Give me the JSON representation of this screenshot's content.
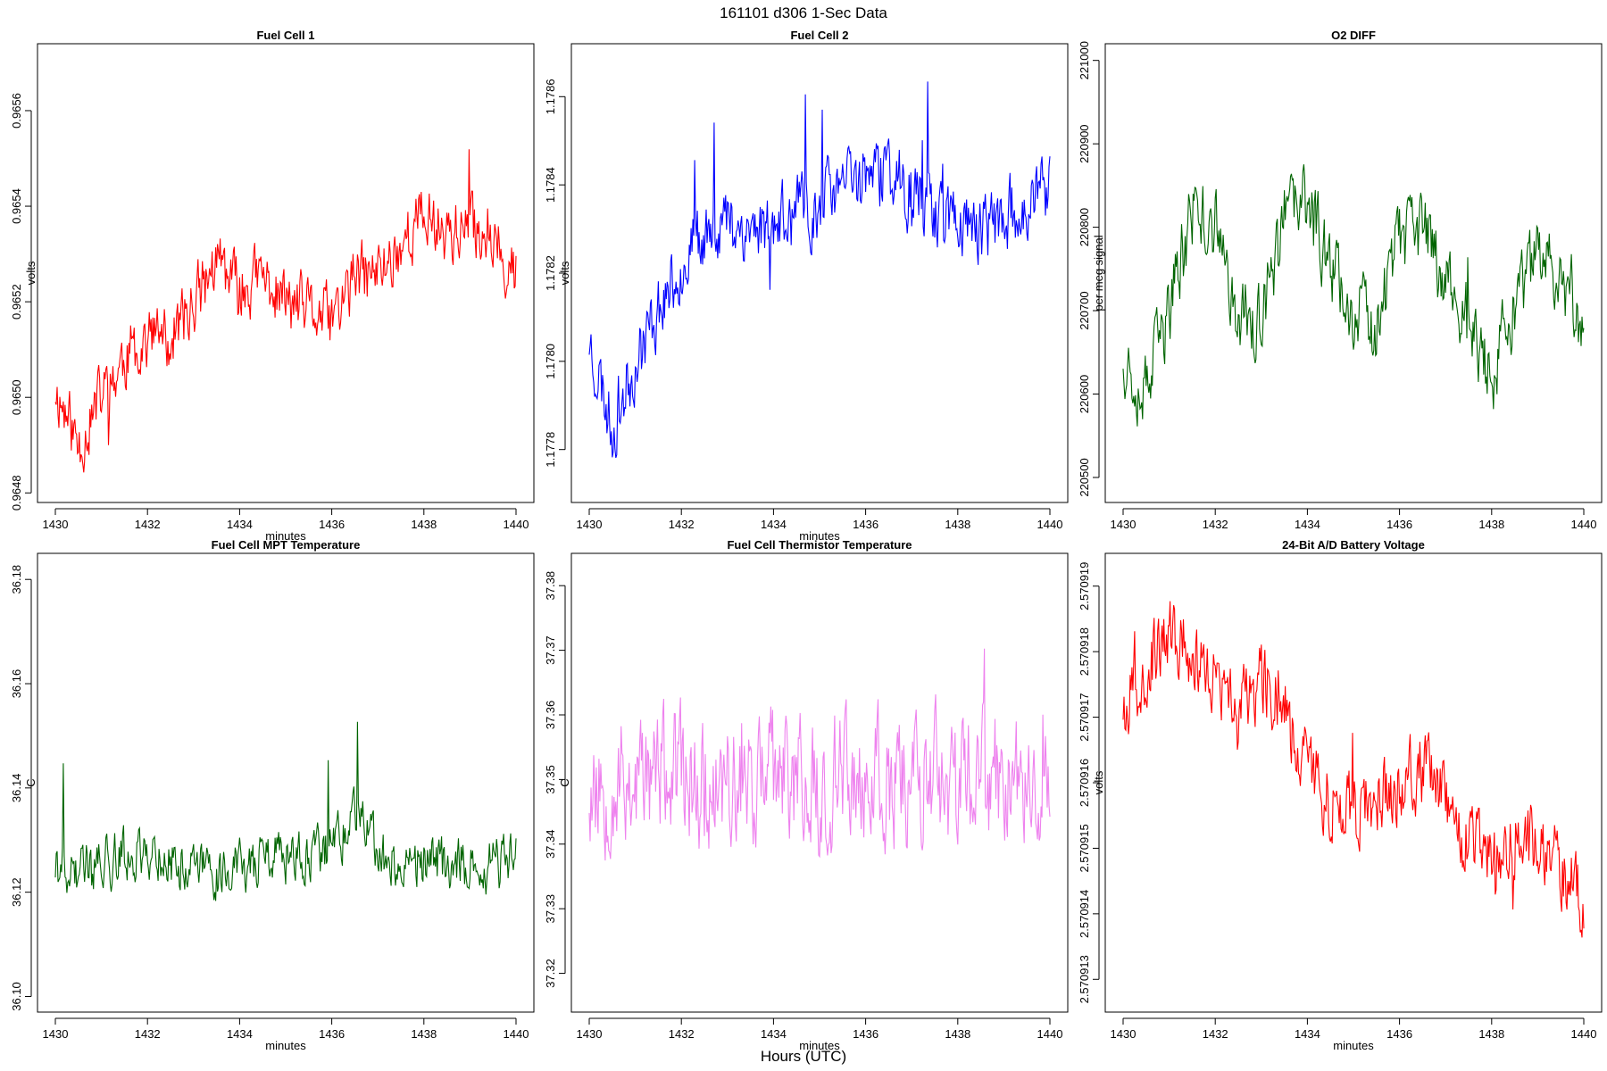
{
  "figure": {
    "title": "161101   d306   1-Sec Data",
    "footer": "Hours (UTC)"
  },
  "chart_data": [
    {
      "type": "line",
      "title": "Fuel Cell 1",
      "xlabel": "minutes",
      "ylabel": "volts",
      "color": "#ff0000",
      "xlim": [
        1430,
        1440
      ],
      "ylim": [
        0.96478,
        0.96574
      ],
      "xticks": [
        1430,
        1432,
        1434,
        1436,
        1438,
        1440
      ],
      "xtick_labels": [
        "1430",
        "1432",
        "1434",
        "1436",
        "1438",
        "1440"
      ],
      "yticks": [
        0.9648,
        0.965,
        0.9652,
        0.9654,
        0.9656
      ],
      "ytick_labels": [
        "0.9648",
        "0.9650",
        "0.9652",
        "0.9654",
        "0.9656"
      ],
      "series": [
        {
          "name": "Fuel Cell 1",
          "x_start": 1430,
          "x_step": 0.5,
          "values": [
            0.96502,
            0.9649,
            0.965,
            0.96508,
            0.96513,
            0.96512,
            0.9652,
            0.96528,
            0.96522,
            0.96525,
            0.9652,
            0.96518,
            0.96516,
            0.96525,
            0.96526,
            0.96532,
            0.96538,
            0.96535,
            0.96535,
            0.96535,
            0.96525,
            0.9653
          ]
        }
      ]
    },
    {
      "type": "line",
      "title": "Fuel Cell 2",
      "xlabel": "minutes",
      "ylabel": "volts",
      "color": "#0000ff",
      "xlim": [
        1430,
        1440
      ],
      "ylim": [
        1.17768,
        1.17872
      ],
      "xticks": [
        1430,
        1432,
        1434,
        1436,
        1438,
        1440
      ],
      "xtick_labels": [
        "1430",
        "1432",
        "1434",
        "1436",
        "1438",
        "1440"
      ],
      "yticks": [
        1.1778,
        1.178,
        1.1782,
        1.1784,
        1.1786
      ],
      "ytick_labels": [
        "1.1778",
        "1.1780",
        "1.1782",
        "1.1784",
        "1.1786"
      ],
      "series": [
        {
          "name": "Fuel Cell 2",
          "x_start": 1430,
          "x_step": 0.5,
          "values": [
            1.17805,
            1.17785,
            1.178,
            1.17812,
            1.17822,
            1.1783,
            1.17832,
            1.1783,
            1.17831,
            1.17833,
            1.17835,
            1.1784,
            1.17842,
            1.17843,
            1.17838,
            1.17835,
            1.17832,
            1.1783,
            1.17832,
            1.17836,
            1.17838,
            1.17838
          ]
        }
      ]
    },
    {
      "type": "line",
      "title": "O2 DIFF",
      "xlabel": "",
      "ylabel": "per meg signal",
      "color": "#006400",
      "xlim": [
        1430,
        1440
      ],
      "ylim": [
        220470,
        221020
      ],
      "xticks": [
        1430,
        1432,
        1434,
        1436,
        1438,
        1440
      ],
      "xtick_labels": [
        "1430",
        "1432",
        "1434",
        "1436",
        "1438",
        "1440"
      ],
      "yticks": [
        220500,
        220600,
        220700,
        220800,
        220900,
        221000
      ],
      "ytick_labels": [
        "220500",
        "220600",
        "220700",
        "220800",
        "220900",
        "221000"
      ],
      "series": [
        {
          "name": "O2 DIFF",
          "x_start": 1430,
          "x_step": 0.5,
          "values": [
            220650,
            220600,
            220700,
            220820,
            220800,
            220700,
            220680,
            220810,
            220830,
            220760,
            220700,
            220680,
            220780,
            220800,
            220740,
            220680,
            220620,
            220700,
            220760,
            220750,
            220680,
            220650
          ]
        }
      ]
    },
    {
      "type": "line",
      "title": "Fuel Cell MPT Temperature",
      "xlabel": "minutes",
      "ylabel": "C",
      "color": "#006400",
      "xlim": [
        1430,
        1440
      ],
      "ylim": [
        36.097,
        36.185
      ],
      "xticks": [
        1430,
        1432,
        1434,
        1436,
        1438,
        1440
      ],
      "xtick_labels": [
        "1430",
        "1432",
        "1434",
        "1436",
        "1438",
        "1440"
      ],
      "yticks": [
        36.1,
        36.12,
        36.14,
        36.16,
        36.18
      ],
      "ytick_labels": [
        "36.10",
        "36.12",
        "36.14",
        "36.16",
        "36.18"
      ],
      "series": [
        {
          "name": "Fuel Cell MPT Temperature",
          "x_start": 1430,
          "x_step": 0.5,
          "values": [
            36.125,
            36.124,
            36.126,
            36.127,
            36.128,
            36.126,
            36.125,
            36.124,
            36.125,
            36.126,
            36.127,
            36.126,
            36.128,
            36.135,
            36.127,
            36.126,
            36.126,
            36.125,
            36.126,
            36.125,
            36.127,
            36.126
          ]
        }
      ]
    },
    {
      "type": "line",
      "title": "Fuel Cell Thermistor Temperature",
      "xlabel": "minutes",
      "ylabel": "C",
      "color": "#ee82ee",
      "xlim": [
        1430,
        1440
      ],
      "ylim": [
        37.314,
        37.385
      ],
      "xticks": [
        1430,
        1432,
        1434,
        1436,
        1438,
        1440
      ],
      "xtick_labels": [
        "1430",
        "1432",
        "1434",
        "1436",
        "1438",
        "1440"
      ],
      "yticks": [
        37.32,
        37.33,
        37.34,
        37.35,
        37.36,
        37.37,
        37.38
      ],
      "ytick_labels": [
        "37.32",
        "37.33",
        "37.34",
        "37.35",
        "37.36",
        "37.37",
        "37.38"
      ],
      "series": [
        {
          "name": "Fuel Cell Thermistor Temperature",
          "x_start": 1430,
          "x_step": 0.5,
          "values": [
            37.349,
            37.35,
            37.35,
            37.351,
            37.35,
            37.35,
            37.349,
            37.35,
            37.35,
            37.35,
            37.349,
            37.35,
            37.35,
            37.35,
            37.351,
            37.35,
            37.349,
            37.35,
            37.35,
            37.35,
            37.35,
            37.349
          ]
        }
      ]
    },
    {
      "type": "line",
      "title": "24-Bit A/D Battery Voltage",
      "xlabel": "minutes",
      "ylabel": "volts",
      "color": "#ff0000",
      "xlim": [
        1430,
        1440
      ],
      "ylim": [
        2.5709125,
        2.5709195
      ],
      "xticks": [
        1430,
        1432,
        1434,
        1436,
        1438,
        1440
      ],
      "xtick_labels": [
        "1430",
        "1432",
        "1434",
        "1436",
        "1438",
        "1440"
      ],
      "yticks": [
        2.570913,
        2.570914,
        2.570915,
        2.570916,
        2.570917,
        2.570918,
        2.570919
      ],
      "ytick_labels": [
        "2.570913",
        "2.570914",
        "2.570915",
        "2.570916",
        "2.570917",
        "2.570918",
        "2.570919"
      ],
      "series": [
        {
          "name": "24-Bit A/D Battery Voltage",
          "x_start": 1430,
          "x_step": 0.5,
          "values": [
            2.5709172,
            2.5709178,
            2.5709182,
            2.570918,
            2.5709175,
            2.570917,
            2.5709177,
            2.5709172,
            2.5709162,
            2.5709158,
            2.5709155,
            2.5709158,
            2.570916,
            2.5709162,
            2.5709156,
            2.570915,
            2.5709148,
            2.5709152,
            2.570915,
            2.5709148,
            2.5709142,
            2.570914
          ]
        }
      ]
    }
  ]
}
